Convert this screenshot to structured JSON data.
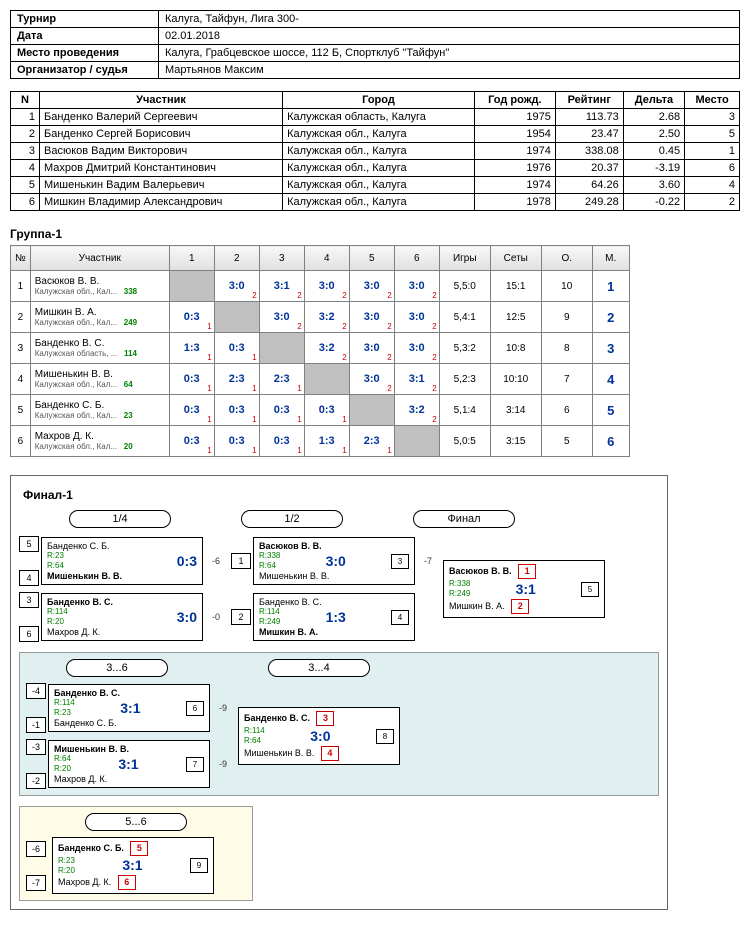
{
  "info": {
    "rows": [
      {
        "label": "Турнир",
        "value": "Калуга, Тайфун, Лига 300-"
      },
      {
        "label": "Дата",
        "value": "02.01.2018"
      },
      {
        "label": "Место проведения",
        "value": "Калуга, Грабцевское шоссе, 112 Б, Спортклуб \"Тайфун\""
      },
      {
        "label": "Организатор / судья",
        "value": "Мартьянов Максим"
      }
    ]
  },
  "main": {
    "headers": [
      "N",
      "Участник",
      "Город",
      "Год рожд.",
      "Рейтинг",
      "Дельта",
      "Место"
    ],
    "rows": [
      {
        "n": "1",
        "name": "Банденко Валерий Сергеевич",
        "city": "Калужская область, Калуга",
        "year": "1975",
        "rating": "113.73",
        "delta": "2.68",
        "place": "3"
      },
      {
        "n": "2",
        "name": "Банденко Сергей Борисович",
        "city": "Калужская обл., Калуга",
        "year": "1954",
        "rating": "23.47",
        "delta": "2.50",
        "place": "5"
      },
      {
        "n": "3",
        "name": "Васюков Вадим Викторович",
        "city": "Калужская обл., Калуга",
        "year": "1974",
        "rating": "338.08",
        "delta": "0.45",
        "place": "1"
      },
      {
        "n": "4",
        "name": "Махров Дмитрий Константинович",
        "city": "Калужская обл., Калуга",
        "year": "1976",
        "rating": "20.37",
        "delta": "-3.19",
        "place": "6"
      },
      {
        "n": "5",
        "name": "Мишенькин Вадим Валерьевич",
        "city": "Калужская обл., Калуга",
        "year": "1974",
        "rating": "64.26",
        "delta": "3.60",
        "place": "4"
      },
      {
        "n": "6",
        "name": "Мишкин Владимир Александрович",
        "city": "Калужская обл., Калуга",
        "year": "1978",
        "rating": "249.28",
        "delta": "-0.22",
        "place": "2"
      }
    ]
  },
  "group": {
    "title": "Группа-1",
    "headers": [
      "№",
      "Участник",
      "1",
      "2",
      "3",
      "4",
      "5",
      "6",
      "Игры",
      "Сеты",
      "О.",
      "М."
    ],
    "rows": [
      {
        "n": "1",
        "name": "Васюков В. В.",
        "sub": "Калужская обл., Кал...",
        "r": "338",
        "cells": [
          null,
          {
            "s": "3:0",
            "p": "2"
          },
          {
            "s": "3:1",
            "p": "2"
          },
          {
            "s": "3:0",
            "p": "2"
          },
          {
            "s": "3:0",
            "p": "2"
          },
          {
            "s": "3:0",
            "p": "2"
          }
        ],
        "games": "5,5:0",
        "sets": "15:1",
        "pts": "10",
        "place": "1"
      },
      {
        "n": "2",
        "name": "Мишкин В. А.",
        "sub": "Калужская обл., Кал...",
        "r": "249",
        "cells": [
          {
            "s": "0:3",
            "p": "1"
          },
          null,
          {
            "s": "3:0",
            "p": "2"
          },
          {
            "s": "3:2",
            "p": "2"
          },
          {
            "s": "3:0",
            "p": "2"
          },
          {
            "s": "3:0",
            "p": "2"
          }
        ],
        "games": "5,4:1",
        "sets": "12:5",
        "pts": "9",
        "place": "2"
      },
      {
        "n": "3",
        "name": "Банденко В. С.",
        "sub": "Калужская область, ...",
        "r": "114",
        "cells": [
          {
            "s": "1:3",
            "p": "1"
          },
          {
            "s": "0:3",
            "p": "1"
          },
          null,
          {
            "s": "3:2",
            "p": "2"
          },
          {
            "s": "3:0",
            "p": "2"
          },
          {
            "s": "3:0",
            "p": "2"
          }
        ],
        "games": "5,3:2",
        "sets": "10:8",
        "pts": "8",
        "place": "3"
      },
      {
        "n": "4",
        "name": "Мишенькин В. В.",
        "sub": "Калужская обл., Кал...",
        "r": "64",
        "cells": [
          {
            "s": "0:3",
            "p": "1"
          },
          {
            "s": "2:3",
            "p": "1"
          },
          {
            "s": "2:3",
            "p": "1"
          },
          null,
          {
            "s": "3:0",
            "p": "2"
          },
          {
            "s": "3:1",
            "p": "2"
          }
        ],
        "games": "5,2:3",
        "sets": "10:10",
        "pts": "7",
        "place": "4"
      },
      {
        "n": "5",
        "name": "Банденко С. Б.",
        "sub": "Калужская обл., Кал...",
        "r": "23",
        "cells": [
          {
            "s": "0:3",
            "p": "1"
          },
          {
            "s": "0:3",
            "p": "1"
          },
          {
            "s": "0:3",
            "p": "1"
          },
          {
            "s": "0:3",
            "p": "1"
          },
          null,
          {
            "s": "3:2",
            "p": "2"
          }
        ],
        "games": "5,1:4",
        "sets": "3:14",
        "pts": "6",
        "place": "5"
      },
      {
        "n": "6",
        "name": "Махров Д. К.",
        "sub": "Калужская обл., Кал...",
        "r": "20",
        "cells": [
          {
            "s": "0:3",
            "p": "1"
          },
          {
            "s": "0:3",
            "p": "1"
          },
          {
            "s": "0:3",
            "p": "1"
          },
          {
            "s": "1:3",
            "p": "1"
          },
          {
            "s": "2:3",
            "p": "1"
          },
          null
        ],
        "games": "5,0:5",
        "sets": "3:15",
        "pts": "5",
        "place": "6"
      }
    ]
  },
  "bracket": {
    "title": "Финал-1",
    "rounds": [
      "1/4",
      "1/2",
      "Финал"
    ],
    "qf": [
      {
        "seedTop": "5",
        "seedBot": "4",
        "top": "Банденко С. Б.",
        "bot": "Мишенькин В. В.",
        "rTop": "R:23",
        "rBot": "R:64",
        "score": "0:3",
        "conn": "-6"
      },
      {
        "seedTop": "3",
        "seedBot": "6",
        "top": "Банденко В. С.",
        "bot": "Махров Д. К.",
        "rTop": "R:114",
        "rBot": "R:20",
        "score": "3:0",
        "conn": "-0"
      }
    ],
    "sf": [
      {
        "seedTop": "1",
        "top": "Васюков В. В.",
        "bot": "Мишенькин В. В.",
        "rTop": "R:338",
        "rBot": "R:64",
        "score": "3:0",
        "inner": "3",
        "conn": "-7"
      },
      {
        "seedTop": "2",
        "top": "Банденко В. С.",
        "bot": "Мишкин В. А.",
        "rTop": "R:114",
        "rBot": "R:249",
        "score": "1:3",
        "inner": "4",
        "conn": ""
      }
    ],
    "final": {
      "top": "Васюков В. В.",
      "bot": "Мишкин В. А.",
      "rTop": "R:338",
      "rBot": "R:249",
      "score": "3:1",
      "inner": "5",
      "seed1": "1",
      "seed2": "2"
    },
    "sub36": {
      "label36": "3...6",
      "label34": "3...4",
      "left": [
        {
          "seedT": "-4",
          "seedB": "-1",
          "top": "Банденко В. С.",
          "bot": "Банденко С. Б.",
          "rTop": "R:114",
          "rBot": "R:23",
          "score": "3:1",
          "inner": "6",
          "conn": "-9"
        },
        {
          "seedT": "-3",
          "seedB": "-2",
          "top": "Мишенькин В. В.",
          "bot": "Махров Д. К.",
          "rTop": "R:64",
          "rBot": "R:20",
          "score": "3:1",
          "inner": "7",
          "conn": "-9"
        }
      ],
      "right": {
        "top": "Банденко В. С.",
        "bot": "Мишенькин В. В.",
        "rTop": "R:114",
        "rBot": "R:64",
        "score": "3:0",
        "inner": "8",
        "seed3": "3",
        "seed4": "4"
      }
    },
    "sub56": {
      "label": "5...6",
      "match": {
        "seedT": "-6",
        "seedB": "-7",
        "top": "Банденко С. Б.",
        "bot": "Махров Д. К.",
        "rTop": "R:23",
        "rBot": "R:20",
        "score": "3:1",
        "inner": "9",
        "seed5": "5",
        "seed6": "6"
      }
    }
  }
}
